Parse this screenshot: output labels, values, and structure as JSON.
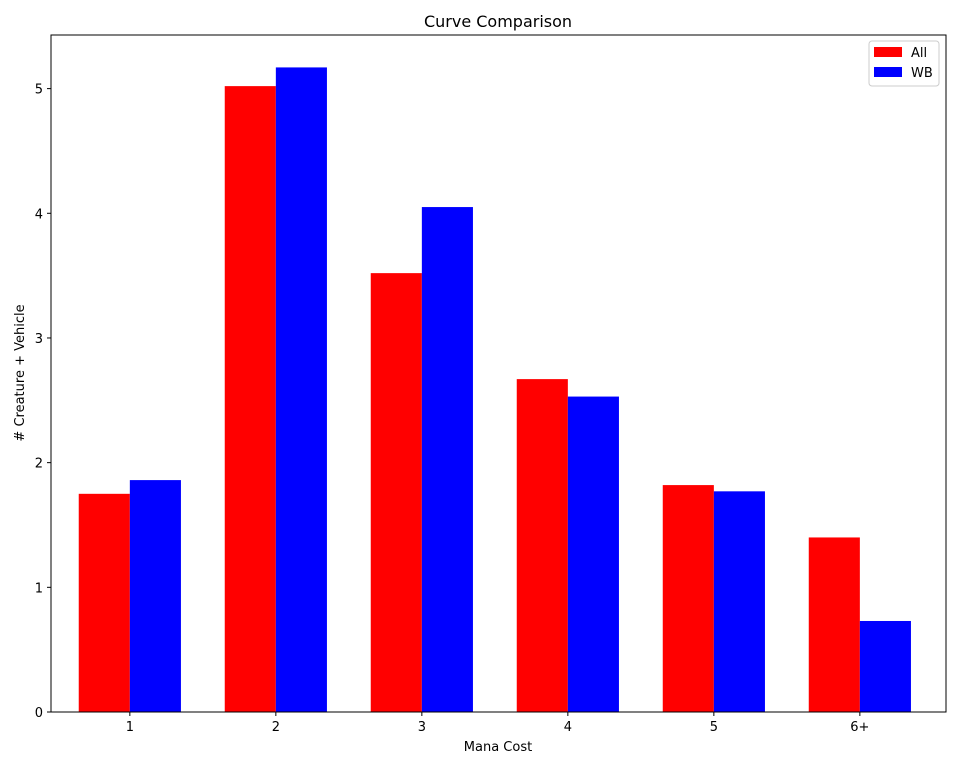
{
  "chart_data": {
    "type": "bar",
    "title": "Curve Comparison",
    "xlabel": "Mana Cost",
    "ylabel": "# Creature + Vehicle",
    "categories": [
      "1",
      "2",
      "3",
      "4",
      "5",
      "6+"
    ],
    "series": [
      {
        "name": "All",
        "color": "#ff0000",
        "values": [
          1.75,
          5.02,
          3.52,
          2.67,
          1.82,
          1.4
        ]
      },
      {
        "name": "WB",
        "color": "#0000ff",
        "values": [
          1.86,
          5.17,
          4.05,
          2.53,
          1.77,
          0.73
        ]
      }
    ],
    "ylim": [
      0,
      5.43
    ],
    "yticks": [
      0,
      1,
      2,
      3,
      4,
      5
    ],
    "grid": false,
    "legend_position": "top-right"
  }
}
